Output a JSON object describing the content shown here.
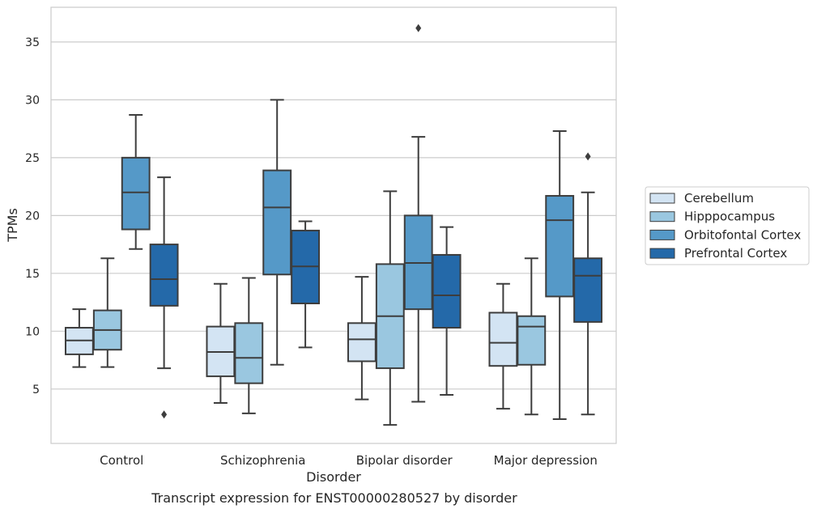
{
  "caption": "Transcript expression for ENST00000280527 by disorder",
  "chart_data": {
    "type": "box",
    "xlabel": "Disorder",
    "ylabel": "TPMs",
    "ylim": [
      0.3,
      38
    ],
    "yticks": [
      5,
      10,
      15,
      20,
      25,
      30,
      35
    ],
    "categories": [
      "Control",
      "Schizophrenia",
      "Bipolar disorder",
      "Major depression"
    ],
    "grid": "horizontal",
    "legend_position": "right",
    "series": [
      {
        "name": "Cerebellum",
        "color": "#d3e4f3",
        "boxes": [
          {
            "whisker_low": 6.9,
            "q1": 8.0,
            "median": 9.2,
            "q3": 10.3,
            "whisker_high": 11.9,
            "outliers": []
          },
          {
            "whisker_low": 3.8,
            "q1": 6.1,
            "median": 8.2,
            "q3": 10.4,
            "whisker_high": 14.1,
            "outliers": []
          },
          {
            "whisker_low": 4.1,
            "q1": 7.4,
            "median": 9.3,
            "q3": 10.7,
            "whisker_high": 14.7,
            "outliers": []
          },
          {
            "whisker_low": 3.3,
            "q1": 7.0,
            "median": 9.0,
            "q3": 11.6,
            "whisker_high": 14.1,
            "outliers": []
          }
        ]
      },
      {
        "name": "Hipppocampus",
        "color": "#9ac7e0",
        "boxes": [
          {
            "whisker_low": 6.9,
            "q1": 8.4,
            "median": 10.1,
            "q3": 11.8,
            "whisker_high": 16.3,
            "outliers": []
          },
          {
            "whisker_low": 2.9,
            "q1": 5.5,
            "median": 7.7,
            "q3": 10.7,
            "whisker_high": 14.6,
            "outliers": []
          },
          {
            "whisker_low": 1.9,
            "q1": 6.8,
            "median": 11.3,
            "q3": 15.8,
            "whisker_high": 22.1,
            "outliers": []
          },
          {
            "whisker_low": 2.8,
            "q1": 7.1,
            "median": 10.4,
            "q3": 11.3,
            "whisker_high": 16.3,
            "outliers": []
          }
        ]
      },
      {
        "name": "Orbitofontal Cortex",
        "color": "#5599c8",
        "boxes": [
          {
            "whisker_low": 17.1,
            "q1": 18.8,
            "median": 22.0,
            "q3": 25.0,
            "whisker_high": 28.7,
            "outliers": []
          },
          {
            "whisker_low": 7.1,
            "q1": 14.9,
            "median": 20.7,
            "q3": 23.9,
            "whisker_high": 30.0,
            "outliers": []
          },
          {
            "whisker_low": 3.9,
            "q1": 11.9,
            "median": 15.9,
            "q3": 20.0,
            "whisker_high": 26.8,
            "outliers": [
              36.2
            ]
          },
          {
            "whisker_low": 2.4,
            "q1": 13.0,
            "median": 19.6,
            "q3": 21.7,
            "whisker_high": 27.3,
            "outliers": []
          }
        ]
      },
      {
        "name": "Prefrontal Cortex",
        "color": "#2469a9",
        "boxes": [
          {
            "whisker_low": 6.8,
            "q1": 12.2,
            "median": 14.5,
            "q3": 17.5,
            "whisker_high": 23.3,
            "outliers": [
              2.8
            ]
          },
          {
            "whisker_low": 8.6,
            "q1": 12.4,
            "median": 15.6,
            "q3": 18.7,
            "whisker_high": 19.5,
            "outliers": []
          },
          {
            "whisker_low": 4.5,
            "q1": 10.3,
            "median": 13.1,
            "q3": 16.6,
            "whisker_high": 19.0,
            "outliers": []
          },
          {
            "whisker_low": 2.8,
            "q1": 10.8,
            "median": 14.8,
            "q3": 16.3,
            "whisker_high": 22.0,
            "outliers": [
              25.1
            ]
          }
        ]
      }
    ]
  }
}
